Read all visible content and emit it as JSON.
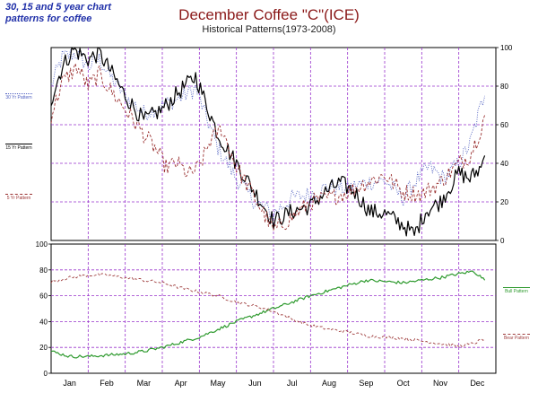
{
  "caption": "30, 15 and 5 year chart patterns for coffee",
  "colors": {
    "p30": "#5060c0",
    "p15": "#000000",
    "p5": "#9a3030",
    "bull": "#2e9a2e",
    "bear": "#a04040",
    "grid": "#9933cc"
  },
  "chart_data": [
    {
      "type": "line",
      "title": "December Coffee \"C\"(ICE)",
      "subtitle": "Historical Patterns(1973-2008)",
      "categories": [
        "Jan",
        "Feb",
        "Mar",
        "Apr",
        "May",
        "Jun",
        "Jul",
        "Aug",
        "Sep",
        "Oct",
        "Nov",
        "Dec"
      ],
      "ylim": [
        0,
        100
      ],
      "yticks": [
        0,
        20,
        40,
        60,
        80,
        100
      ],
      "y_axis_side": "right",
      "grid": true,
      "series": [
        {
          "name": "30 Yr Pattern",
          "style": "dotted",
          "anchors": [
            [
              0,
              80
            ],
            [
              0.3,
              95
            ],
            [
              0.7,
              97
            ],
            [
              1.0,
              90
            ],
            [
              1.3,
              94
            ],
            [
              1.6,
              85
            ],
            [
              2.0,
              75
            ],
            [
              2.5,
              66
            ],
            [
              3.0,
              70
            ],
            [
              3.5,
              74
            ],
            [
              3.9,
              79
            ],
            [
              4.2,
              63
            ],
            [
              4.5,
              48
            ],
            [
              5.0,
              32
            ],
            [
              5.5,
              20
            ],
            [
              6.0,
              14
            ],
            [
              6.5,
              22
            ],
            [
              7.0,
              24
            ],
            [
              7.5,
              28
            ],
            [
              8.0,
              27
            ],
            [
              8.5,
              30
            ],
            [
              9.0,
              31
            ],
            [
              9.5,
              22
            ],
            [
              9.8,
              30
            ],
            [
              10.2,
              38
            ],
            [
              10.6,
              32
            ],
            [
              11.0,
              40
            ],
            [
              11.3,
              50
            ],
            [
              11.6,
              70
            ],
            [
              11.7,
              75
            ]
          ]
        },
        {
          "name": "15 Yr Pattern",
          "style": "solid",
          "anchors": [
            [
              0,
              73
            ],
            [
              0.3,
              90
            ],
            [
              0.6,
              99
            ],
            [
              1.0,
              94
            ],
            [
              1.3,
              97
            ],
            [
              1.6,
              88
            ],
            [
              2.0,
              75
            ],
            [
              2.5,
              62
            ],
            [
              3.0,
              68
            ],
            [
              3.5,
              78
            ],
            [
              3.9,
              85
            ],
            [
              4.2,
              70
            ],
            [
              4.5,
              55
            ],
            [
              5.0,
              40
            ],
            [
              5.5,
              25
            ],
            [
              6.0,
              10
            ],
            [
              6.5,
              15
            ],
            [
              7.0,
              18
            ],
            [
              7.4,
              25
            ],
            [
              7.8,
              30
            ],
            [
              8.2,
              25
            ],
            [
              8.6,
              15
            ],
            [
              9.0,
              14
            ],
            [
              9.5,
              8
            ],
            [
              9.8,
              3
            ],
            [
              10.1,
              15
            ],
            [
              10.5,
              20
            ],
            [
              11.0,
              35
            ],
            [
              11.3,
              32
            ],
            [
              11.6,
              38
            ],
            [
              11.7,
              44
            ]
          ]
        },
        {
          "name": "5 Yr Pattern",
          "style": "dashed",
          "anchors": [
            [
              0,
              65
            ],
            [
              0.3,
              82
            ],
            [
              0.7,
              90
            ],
            [
              1.0,
              80
            ],
            [
              1.3,
              86
            ],
            [
              1.6,
              78
            ],
            [
              2.0,
              68
            ],
            [
              2.5,
              55
            ],
            [
              2.8,
              48
            ],
            [
              3.1,
              38
            ],
            [
              3.4,
              40
            ],
            [
              3.7,
              34
            ],
            [
              4.0,
              38
            ],
            [
              4.3,
              52
            ],
            [
              4.6,
              58
            ],
            [
              5.0,
              38
            ],
            [
              5.5,
              22
            ],
            [
              6.0,
              5
            ],
            [
              6.5,
              12
            ],
            [
              7.0,
              20
            ],
            [
              7.5,
              22
            ],
            [
              8.0,
              25
            ],
            [
              8.5,
              30
            ],
            [
              9.0,
              34
            ],
            [
              9.5,
              25
            ],
            [
              10.0,
              24
            ],
            [
              10.5,
              30
            ],
            [
              11.0,
              40
            ],
            [
              11.3,
              44
            ],
            [
              11.6,
              58
            ],
            [
              11.7,
              65
            ]
          ]
        }
      ]
    },
    {
      "type": "line",
      "categories": [
        "Jan",
        "Feb",
        "Mar",
        "Apr",
        "May",
        "Jun",
        "Jul",
        "Aug",
        "Sep",
        "Oct",
        "Nov",
        "Dec"
      ],
      "ylim": [
        0,
        100
      ],
      "yticks": [
        0,
        20,
        40,
        60,
        80,
        100
      ],
      "y_axis_side": "left",
      "grid": true,
      "series": [
        {
          "name": "Bull Pattern",
          "style": "solid",
          "anchors": [
            [
              0,
              17
            ],
            [
              0.5,
              13
            ],
            [
              1.0,
              13
            ],
            [
              1.5,
              14
            ],
            [
              2.0,
              15
            ],
            [
              2.5,
              17
            ],
            [
              3.0,
              20
            ],
            [
              3.5,
              24
            ],
            [
              4.0,
              28
            ],
            [
              4.5,
              34
            ],
            [
              5.0,
              40
            ],
            [
              5.5,
              45
            ],
            [
              6.0,
              50
            ],
            [
              6.5,
              55
            ],
            [
              7.0,
              60
            ],
            [
              7.5,
              64
            ],
            [
              8.0,
              68
            ],
            [
              8.5,
              72
            ],
            [
              9.0,
              71
            ],
            [
              9.5,
              70
            ],
            [
              10.0,
              72
            ],
            [
              10.5,
              74
            ],
            [
              11.0,
              77
            ],
            [
              11.4,
              79
            ],
            [
              11.7,
              72
            ]
          ]
        },
        {
          "name": "Bear Pattern",
          "style": "dashed",
          "anchors": [
            [
              0,
              71
            ],
            [
              0.5,
              74
            ],
            [
              1.0,
              76
            ],
            [
              1.5,
              76
            ],
            [
              2.0,
              74
            ],
            [
              2.5,
              72
            ],
            [
              3.0,
              70
            ],
            [
              3.5,
              66
            ],
            [
              4.0,
              63
            ],
            [
              4.5,
              60
            ],
            [
              5.0,
              55
            ],
            [
              5.5,
              52
            ],
            [
              6.0,
              48
            ],
            [
              6.5,
              42
            ],
            [
              7.0,
              37
            ],
            [
              7.5,
              34
            ],
            [
              8.0,
              32
            ],
            [
              8.5,
              29
            ],
            [
              9.0,
              28
            ],
            [
              9.5,
              27
            ],
            [
              10.0,
              25
            ],
            [
              10.5,
              23
            ],
            [
              11.0,
              21
            ],
            [
              11.4,
              23
            ],
            [
              11.7,
              27
            ]
          ]
        }
      ]
    }
  ]
}
